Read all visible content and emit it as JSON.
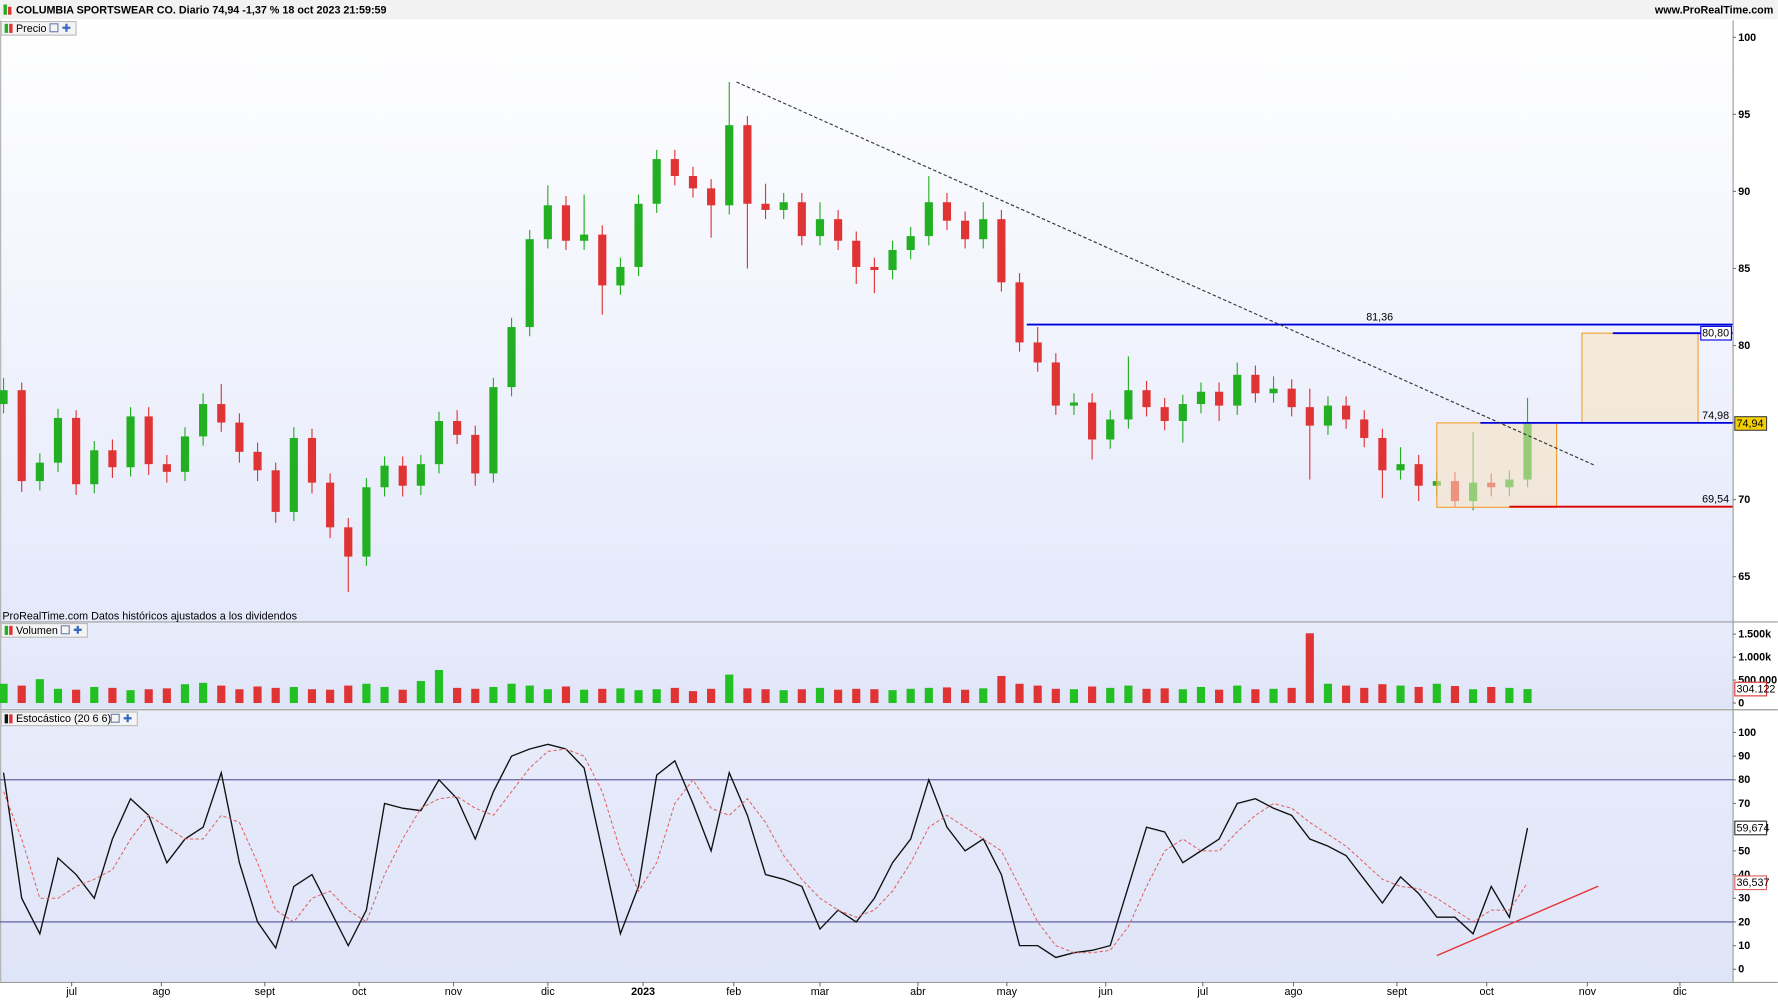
{
  "header": {
    "title": "COLUMBIA SPORTSWEAR CO. Diario 74,94 -1,37 % 18 oct 2023 21:59:59",
    "site": "www.ProRealTime.com"
  },
  "chart_data": [
    {
      "type": "candlestick",
      "title": "Precio",
      "note": "ProRealTime.com Datos históricos ajustados a los dividendos",
      "up_color": "#22b022",
      "down_color": "#e03434",
      "ylim": [
        62.1,
        101.1
      ],
      "yticks": [
        65,
        70,
        75,
        80,
        85,
        90,
        95,
        100
      ],
      "open": [
        76.2,
        77.1,
        71.2,
        72.4,
        75.3,
        71.0,
        73.2,
        72.1,
        75.4,
        72.3,
        71.8,
        74.1,
        76.2,
        75.0,
        73.1,
        71.9,
        69.2,
        74.0,
        71.1,
        68.2,
        66.3,
        70.8,
        72.2,
        70.9,
        72.3,
        75.1,
        74.2,
        71.7,
        77.3,
        81.2,
        86.9,
        89.1,
        86.8,
        87.2,
        83.9,
        85.1,
        89.2,
        92.1,
        91.0,
        90.2,
        89.1,
        94.3,
        89.2,
        88.8,
        89.3,
        87.1,
        88.2,
        86.8,
        85.1,
        84.9,
        86.2,
        87.1,
        89.3,
        88.1,
        86.9,
        88.2,
        84.1,
        80.2,
        78.9,
        76.1,
        76.3,
        73.9,
        75.2,
        77.1,
        76.0,
        75.1,
        76.2,
        77.0,
        76.1,
        78.1,
        76.9,
        77.2,
        76.0,
        74.8,
        76.1,
        75.2,
        74.0,
        71.9,
        72.3,
        70.9,
        71.2,
        69.9,
        71.1,
        70.8,
        71.3
      ],
      "high": [
        77.9,
        77.6,
        73.0,
        75.9,
        75.8,
        73.8,
        73.9,
        76.0,
        76.0,
        72.9,
        74.7,
        76.9,
        77.5,
        75.6,
        73.7,
        72.4,
        74.7,
        74.6,
        71.7,
        68.8,
        71.4,
        72.8,
        72.8,
        72.9,
        75.7,
        75.8,
        74.8,
        77.9,
        81.8,
        87.5,
        90.4,
        89.7,
        89.8,
        87.8,
        85.7,
        89.8,
        92.7,
        92.7,
        91.6,
        90.8,
        97.1,
        94.9,
        90.5,
        89.9,
        89.9,
        89.3,
        88.8,
        87.4,
        85.7,
        86.8,
        87.7,
        91.0,
        89.9,
        88.7,
        89.3,
        88.8,
        84.7,
        81.2,
        79.5,
        76.9,
        76.9,
        75.8,
        79.3,
        77.7,
        76.6,
        76.8,
        77.6,
        77.6,
        78.9,
        78.7,
        78.0,
        77.8,
        77.2,
        76.7,
        76.7,
        75.8,
        74.6,
        73.4,
        72.9,
        71.8,
        71.8,
        74.4,
        71.7,
        71.9,
        76.6
      ],
      "low": [
        75.6,
        70.5,
        70.6,
        71.8,
        70.3,
        70.4,
        71.4,
        71.5,
        71.6,
        71.1,
        71.2,
        73.5,
        74.4,
        72.4,
        71.2,
        68.5,
        68.6,
        70.4,
        67.5,
        64.0,
        65.7,
        70.2,
        70.2,
        70.3,
        71.7,
        73.6,
        70.9,
        71.1,
        76.7,
        80.6,
        86.3,
        86.2,
        86.2,
        82.0,
        83.3,
        84.5,
        88.6,
        90.4,
        89.6,
        87.0,
        88.5,
        85.0,
        88.2,
        88.2,
        86.5,
        86.5,
        86.2,
        84.0,
        83.4,
        84.3,
        85.6,
        86.5,
        87.5,
        86.3,
        86.3,
        83.5,
        79.6,
        78.3,
        75.5,
        75.5,
        72.6,
        73.3,
        74.6,
        75.4,
        74.5,
        73.7,
        75.6,
        75.1,
        75.5,
        76.3,
        76.3,
        75.4,
        71.3,
        74.2,
        74.6,
        73.4,
        70.1,
        71.3,
        69.9,
        70.3,
        69.5,
        69.3,
        70.2,
        70.2,
        70.8
      ],
      "close": [
        77.1,
        71.2,
        72.4,
        75.3,
        71.0,
        73.2,
        72.1,
        75.4,
        72.3,
        71.8,
        74.1,
        76.2,
        75.0,
        73.1,
        71.9,
        69.2,
        74.0,
        71.1,
        68.2,
        66.3,
        70.8,
        72.2,
        70.9,
        72.3,
        75.1,
        74.2,
        71.7,
        77.3,
        81.2,
        86.9,
        89.1,
        86.8,
        87.2,
        83.9,
        85.1,
        89.2,
        92.1,
        91.0,
        90.2,
        89.1,
        94.3,
        89.2,
        88.8,
        89.3,
        87.1,
        88.2,
        86.8,
        85.1,
        84.9,
        86.2,
        87.1,
        89.3,
        88.1,
        86.9,
        88.2,
        84.1,
        80.2,
        78.9,
        76.1,
        76.3,
        73.9,
        75.2,
        77.1,
        76.0,
        75.1,
        76.2,
        77.0,
        76.1,
        78.1,
        76.9,
        77.2,
        76.0,
        74.8,
        76.1,
        75.2,
        74.0,
        71.9,
        72.3,
        70.9,
        71.2,
        69.9,
        71.1,
        70.8,
        71.3,
        74.94
      ],
      "value_labels": [
        null,
        null,
        null,
        null,
        null,
        null,
        null,
        null,
        null,
        null,
        null,
        null,
        null,
        null,
        null,
        null,
        null,
        null,
        null,
        null,
        null,
        null,
        null,
        null,
        null,
        null,
        null,
        null,
        null,
        null,
        null,
        null,
        null,
        null,
        null,
        null,
        null,
        null,
        null,
        null,
        null,
        null,
        null,
        null,
        null,
        null,
        null,
        null,
        null,
        null,
        null,
        null,
        null,
        null,
        null,
        null,
        null,
        null,
        null,
        null,
        null,
        null,
        null,
        null,
        null,
        null,
        null,
        null,
        null,
        null,
        null,
        null,
        null,
        null,
        null,
        null,
        null,
        null,
        null,
        null,
        null,
        null,
        null,
        null,
        "74,94"
      ],
      "levels": [
        {
          "value": 81.36,
          "label": "81,36",
          "color": "#0000dd",
          "from": 56.4,
          "label_at": "center"
        },
        {
          "value": 80.8,
          "label": "80,80",
          "color": "#0000dd",
          "from": 88.7,
          "label_at": "box"
        },
        {
          "value": 74.98,
          "label": "74,98",
          "color": "#0000dd",
          "from": 81.4,
          "label_at": "right"
        },
        {
          "value": 69.54,
          "label": "69,54",
          "color": "#dd0000",
          "from": 83.0,
          "label_at": "right"
        }
      ],
      "trendlines": [
        {
          "x": [
            40.4,
            87.75
          ],
          "y": [
            97.1,
            72.2
          ],
          "color": "#333333",
          "dashed": true
        }
      ],
      "boxes": [
        {
          "x": [
            79.0,
            85.6
          ],
          "y": [
            69.5,
            74.98
          ],
          "color": "#f0a030"
        },
        {
          "x": [
            87.0,
            93.4
          ],
          "y": [
            74.98,
            80.8
          ],
          "color": "#f0a030"
        }
      ]
    },
    {
      "type": "volume",
      "title": "Volumen",
      "up_color": "#22c022",
      "down_color": "#e03434",
      "ylim": [
        -122000,
        1756000
      ],
      "yticks": [
        0,
        {
          "value": 500000,
          "label": "500.000"
        },
        {
          "value": 1000000,
          "label": "1.000k"
        },
        {
          "value": 1500000,
          "label": "1.500k"
        }
      ],
      "values": [
        420000,
        380000,
        520000,
        310000,
        290000,
        350000,
        330000,
        280000,
        300000,
        320000,
        410000,
        440000,
        380000,
        300000,
        360000,
        330000,
        350000,
        300000,
        290000,
        380000,
        420000,
        350000,
        290000,
        480000,
        720000,
        330000,
        310000,
        350000,
        420000,
        380000,
        300000,
        360000,
        290000,
        310000,
        320000,
        280000,
        300000,
        330000,
        260000,
        310000,
        620000,
        320000,
        300000,
        280000,
        300000,
        330000,
        290000,
        310000,
        300000,
        280000,
        310000,
        330000,
        340000,
        290000,
        320000,
        590000,
        420000,
        380000,
        310000,
        300000,
        360000,
        330000,
        380000,
        310000,
        320000,
        300000,
        350000,
        290000,
        380000,
        300000,
        310000,
        330000,
        1520000,
        420000,
        380000,
        330000,
        410000,
        380000,
        350000,
        420000,
        370000,
        300000,
        350000,
        330000,
        304122
      ],
      "value_labels": [
        null,
        null,
        null,
        null,
        null,
        null,
        null,
        null,
        null,
        null,
        null,
        null,
        null,
        null,
        null,
        null,
        null,
        null,
        null,
        null,
        null,
        null,
        null,
        null,
        null,
        null,
        null,
        null,
        null,
        null,
        null,
        null,
        null,
        null,
        null,
        null,
        null,
        null,
        null,
        null,
        null,
        null,
        null,
        null,
        null,
        null,
        null,
        null,
        null,
        null,
        null,
        null,
        null,
        null,
        null,
        null,
        null,
        null,
        null,
        null,
        null,
        null,
        null,
        null,
        null,
        null,
        null,
        null,
        null,
        null,
        null,
        null,
        null,
        null,
        null,
        null,
        null,
        null,
        null,
        null,
        null,
        null,
        null,
        null,
        "304.122"
      ]
    },
    {
      "type": "line",
      "title": "Estocástico (20 6 6)",
      "ylim": [
        -5.3,
        109.1
      ],
      "yticks": [
        0,
        10,
        20,
        30,
        40,
        50,
        70,
        80,
        90,
        100
      ],
      "levels": [
        20,
        80
      ],
      "xlim": [
        -0.19,
        95.3
      ],
      "xticks": [
        {
          "value": 3.75,
          "label": "jul"
        },
        {
          "value": 8.7,
          "label": "ago"
        },
        {
          "value": 14.4,
          "label": "sept"
        },
        {
          "value": 19.6,
          "label": "oct"
        },
        {
          "value": 24.8,
          "label": "nov"
        },
        {
          "value": 30.0,
          "label": "dic"
        },
        {
          "value": 35.25,
          "label": "2023"
        },
        {
          "value": 40.25,
          "label": "feb"
        },
        {
          "value": 45.0,
          "label": "mar"
        },
        {
          "value": 50.4,
          "label": "abr"
        },
        {
          "value": 55.3,
          "label": "may"
        },
        {
          "value": 60.75,
          "label": "jun"
        },
        {
          "value": 66.1,
          "label": "jul"
        },
        {
          "value": 71.1,
          "label": "ago"
        },
        {
          "value": 76.8,
          "label": "sept"
        },
        {
          "value": 81.75,
          "label": "oct"
        },
        {
          "value": 87.3,
          "label": "nov"
        },
        {
          "value": 92.4,
          "label": "dic"
        }
      ],
      "series": [
        {
          "color": "#111111",
          "dashed": false,
          "values": [
            83,
            30,
            15,
            47,
            40,
            30,
            55,
            72,
            65,
            45,
            55,
            60,
            83,
            45,
            20,
            9,
            35,
            40,
            25,
            10,
            25,
            70,
            68,
            67,
            80,
            72,
            55,
            75,
            90,
            93,
            95,
            93,
            85,
            50,
            15,
            35,
            82,
            88,
            70,
            50,
            83,
            65,
            40,
            38,
            35,
            17,
            25,
            20,
            30,
            45,
            55,
            80,
            60,
            50,
            55,
            40,
            10,
            10,
            5,
            7,
            8,
            10,
            35,
            60,
            58,
            45,
            50,
            55,
            70,
            72,
            68,
            65,
            55,
            52,
            48,
            38,
            28,
            39,
            32,
            22,
            22,
            15,
            35,
            22,
            59.674
          ],
          "value_labels": [
            null,
            null,
            null,
            null,
            null,
            null,
            null,
            null,
            null,
            null,
            null,
            null,
            null,
            null,
            null,
            null,
            null,
            null,
            null,
            null,
            null,
            null,
            null,
            null,
            null,
            null,
            null,
            null,
            null,
            null,
            null,
            null,
            null,
            null,
            null,
            null,
            null,
            null,
            null,
            null,
            null,
            null,
            null,
            null,
            null,
            null,
            null,
            null,
            null,
            null,
            null,
            null,
            null,
            null,
            null,
            null,
            null,
            null,
            null,
            null,
            null,
            null,
            null,
            null,
            null,
            null,
            null,
            null,
            null,
            null,
            null,
            null,
            null,
            null,
            null,
            null,
            null,
            null,
            null,
            null,
            null,
            null,
            null,
            null,
            "59,674"
          ]
        },
        {
          "color": "#e06060",
          "dashed": true,
          "values": [
            75,
            55,
            30,
            30,
            35,
            38,
            42,
            55,
            65,
            60,
            55,
            55,
            65,
            62,
            45,
            25,
            20,
            30,
            33,
            25,
            20,
            40,
            55,
            68,
            72,
            73,
            68,
            65,
            75,
            85,
            92,
            93,
            90,
            75,
            50,
            33,
            45,
            70,
            80,
            68,
            65,
            72,
            62,
            48,
            38,
            30,
            25,
            22,
            25,
            33,
            45,
            60,
            65,
            60,
            55,
            50,
            35,
            20,
            10,
            7,
            7,
            8,
            18,
            35,
            50,
            55,
            50,
            50,
            58,
            65,
            70,
            68,
            62,
            57,
            52,
            45,
            38,
            35,
            34,
            30,
            25,
            20,
            25,
            25,
            36.537
          ],
          "value_labels": [
            null,
            null,
            null,
            null,
            null,
            null,
            null,
            null,
            null,
            null,
            null,
            null,
            null,
            null,
            null,
            null,
            null,
            null,
            null,
            null,
            null,
            null,
            null,
            null,
            null,
            null,
            null,
            null,
            null,
            null,
            null,
            null,
            null,
            null,
            null,
            null,
            null,
            null,
            null,
            null,
            null,
            null,
            null,
            null,
            null,
            null,
            null,
            null,
            null,
            null,
            null,
            null,
            null,
            null,
            null,
            null,
            null,
            null,
            null,
            null,
            null,
            null,
            null,
            null,
            null,
            null,
            null,
            null,
            null,
            null,
            null,
            null,
            null,
            null,
            null,
            null,
            null,
            null,
            null,
            null,
            null,
            null,
            null,
            null,
            "36,537"
          ]
        }
      ],
      "trendlines": [
        {
          "x": [
            79.0,
            87.9
          ],
          "y": [
            5.8,
            35.1
          ],
          "color": "#e83030",
          "dashed": false
        }
      ]
    }
  ]
}
